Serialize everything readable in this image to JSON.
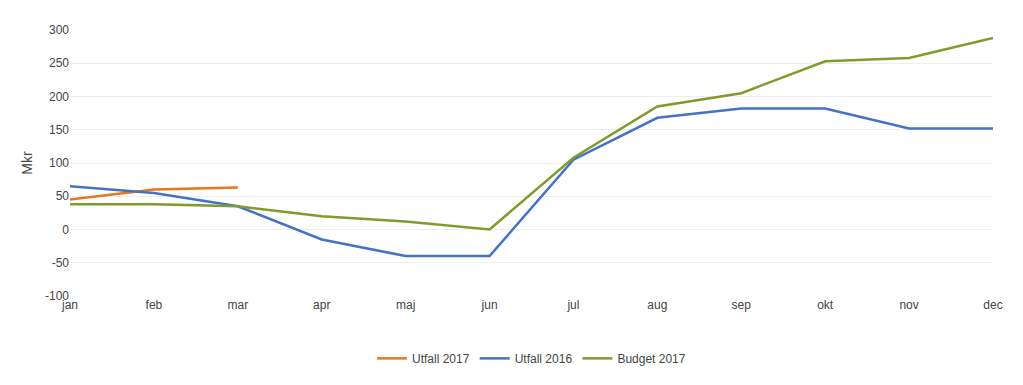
{
  "chart_data": {
    "type": "line",
    "categories": [
      "jan",
      "feb",
      "mar",
      "apr",
      "maj",
      "jun",
      "jul",
      "aug",
      "sep",
      "okt",
      "nov",
      "dec"
    ],
    "series": [
      {
        "name": "Utfall 2017",
        "color": "#E8761A",
        "values": [
          45,
          60,
          63,
          null,
          null,
          null,
          null,
          null,
          null,
          null,
          null,
          null
        ]
      },
      {
        "name": "Utfall 2016",
        "color": "#4472C4",
        "values": [
          65,
          55,
          35,
          -15,
          -40,
          -40,
          105,
          168,
          182,
          182,
          152,
          152
        ]
      },
      {
        "name": "Budget 2017",
        "color": "#7F9B2C",
        "values": [
          38,
          38,
          35,
          20,
          12,
          0,
          108,
          185,
          205,
          253,
          258,
          288
        ]
      }
    ],
    "y_label": "Mkr",
    "ylim": [
      -100,
      300
    ],
    "yticks": [
      -100,
      -50,
      0,
      50,
      100,
      150,
      200,
      250,
      300
    ],
    "grid": true,
    "legend": "bottom"
  }
}
